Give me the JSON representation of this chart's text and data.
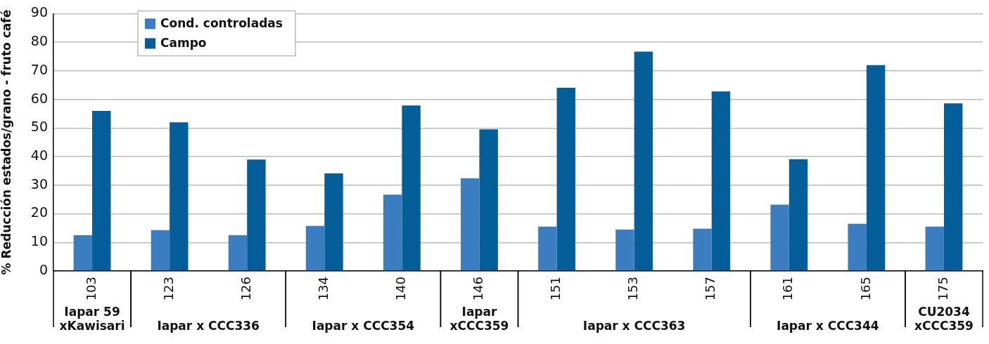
{
  "chart_data": {
    "type": "bar",
    "ylabel": "% Reducción estados/grano - fruto café",
    "categories": [
      "103",
      "123",
      "126",
      "134",
      "140",
      "146",
      "151",
      "153",
      "157",
      "161",
      "165",
      "175"
    ],
    "series": [
      {
        "name": "Cond. controladas",
        "color": "#3a7dc0",
        "values": [
          12.5,
          14.3,
          12.5,
          15.8,
          26.7,
          32.4,
          15.5,
          14.5,
          14.8,
          23.2,
          16.5,
          15.5
        ]
      },
      {
        "name": "Campo",
        "color": "#035e9a",
        "values": [
          56,
          52,
          39,
          34.1,
          57.9,
          49.5,
          64.1,
          76.7,
          62.8,
          39.1,
          72,
          58.6
        ]
      }
    ],
    "ylim": [
      0,
      90
    ],
    "yticks": [
      0,
      10,
      20,
      30,
      40,
      50,
      60,
      70,
      80,
      90
    ],
    "grid": "y",
    "legend": "top left",
    "annotations": [
      "Iapar 59\nxKawisari",
      "Iapar x CCC336",
      "Iapar x CCC354",
      "Iapar\nxCCC359",
      "Iapar x CCC363",
      "Iapar x CCC344",
      "CU2034\nxCCC359"
    ]
  }
}
